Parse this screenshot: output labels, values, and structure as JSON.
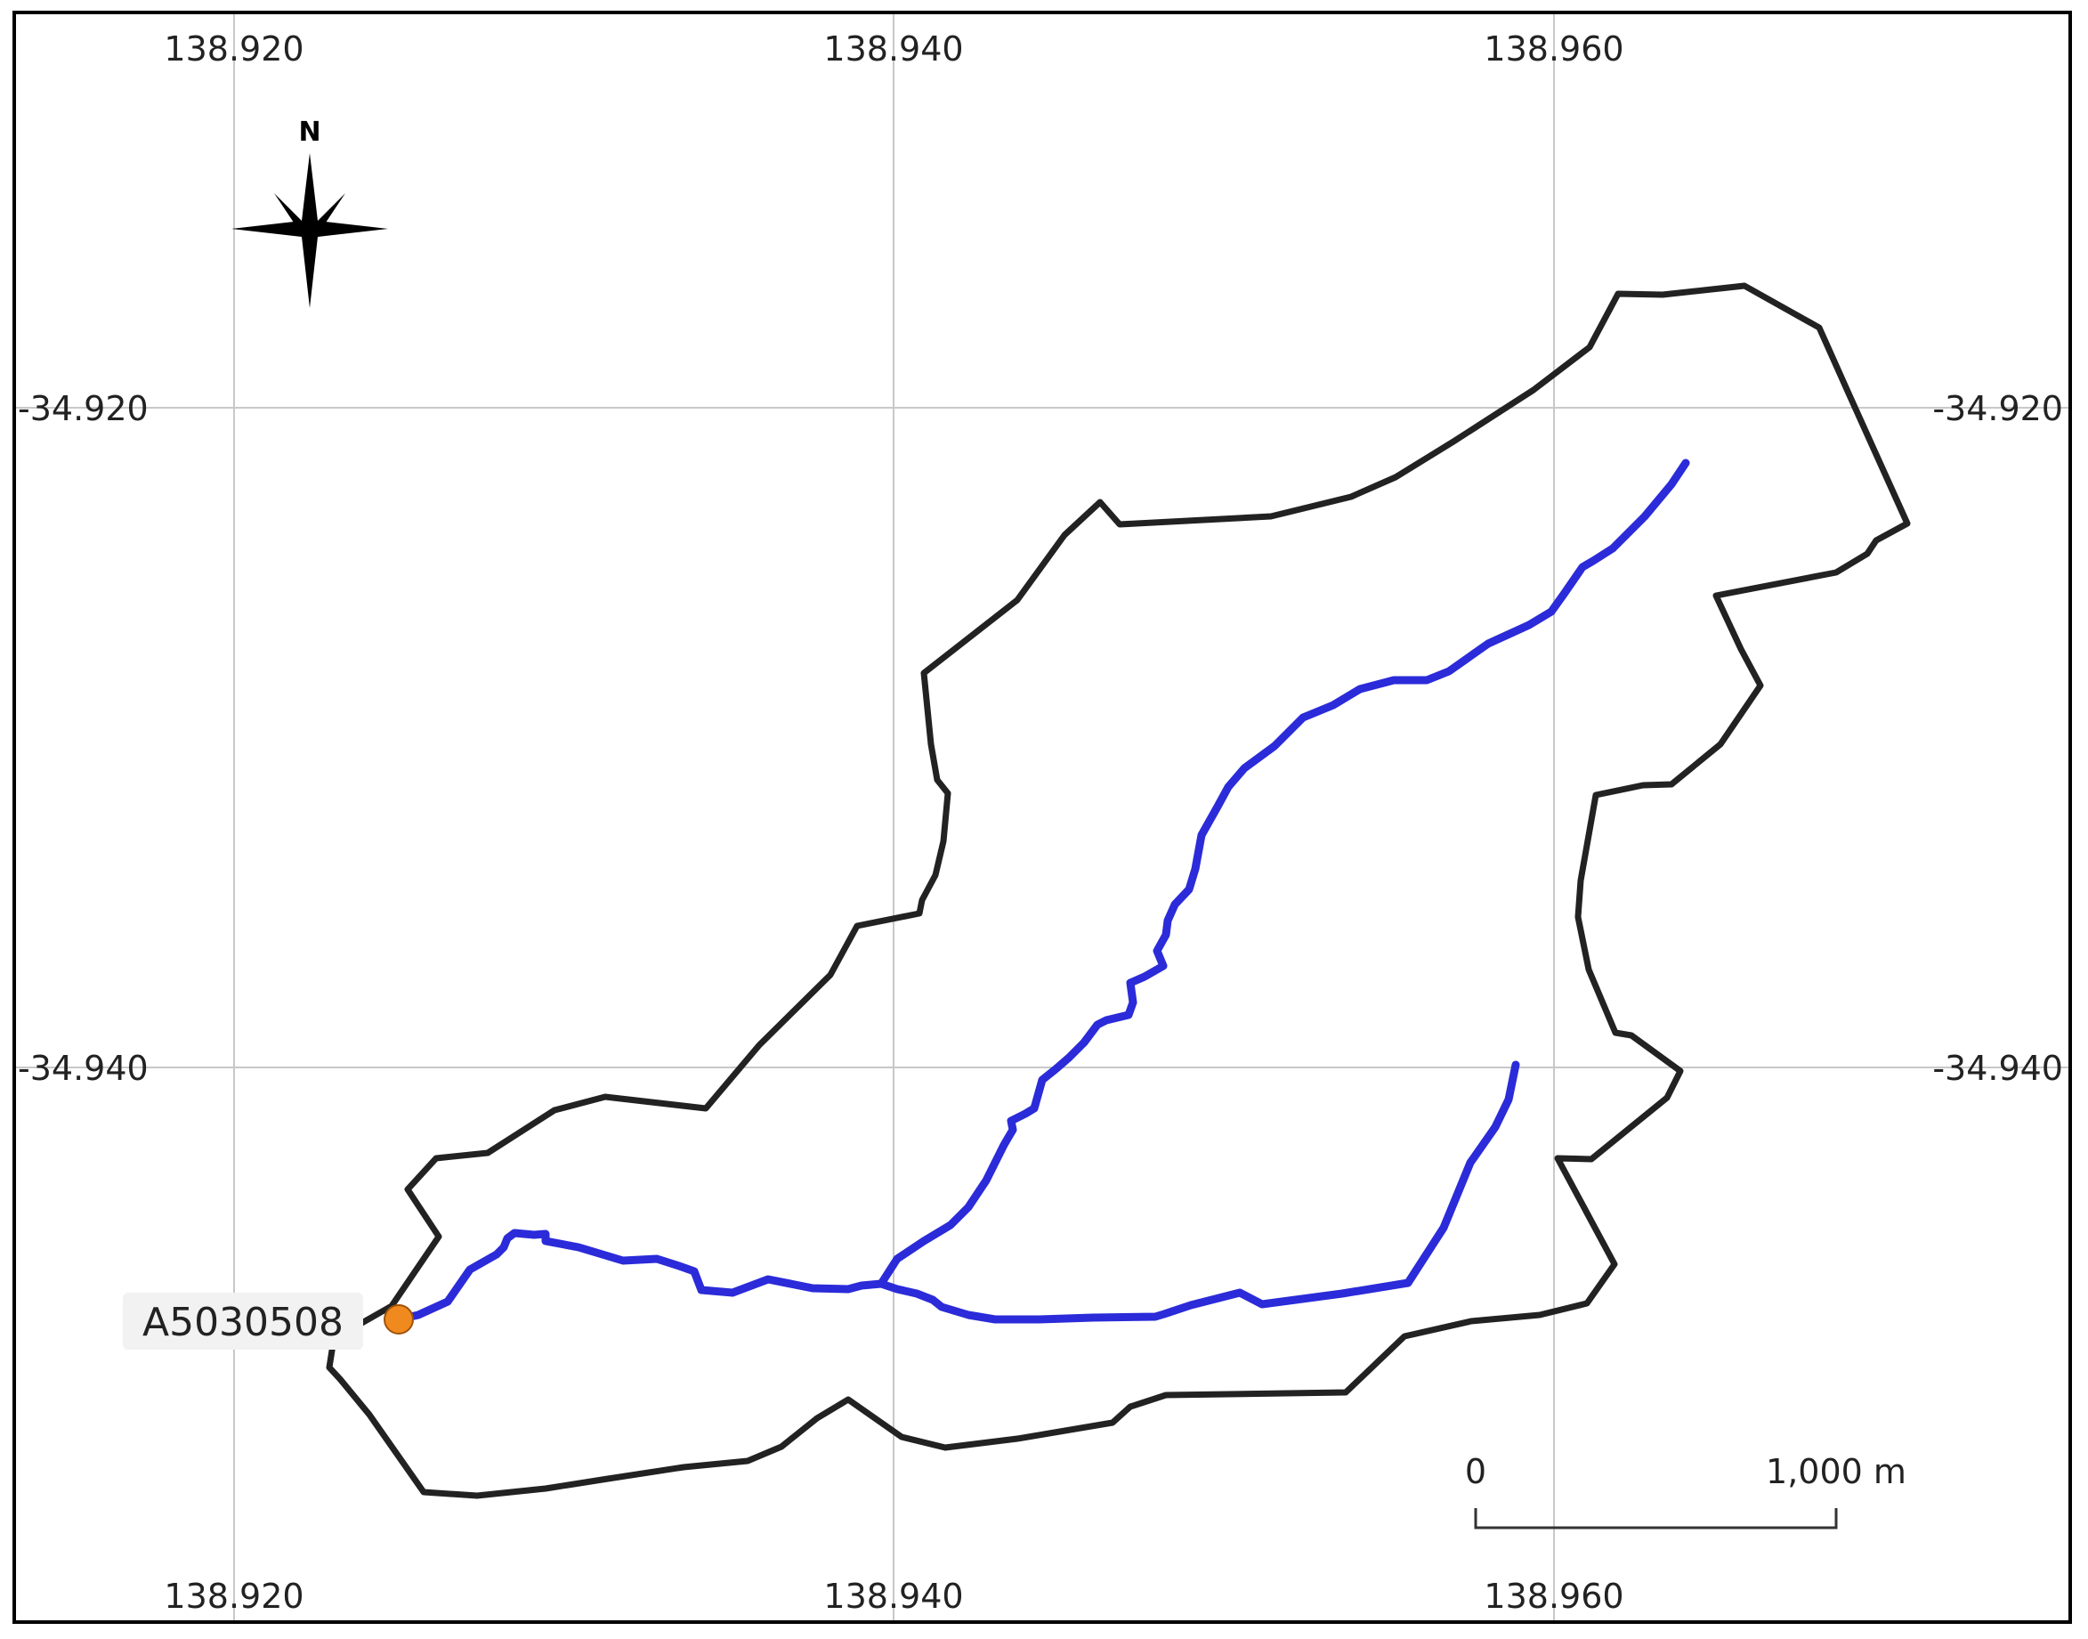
{
  "map": {
    "longitude_labels_top": [
      "138.920",
      "138.940",
      "138.960"
    ],
    "longitude_labels_bottom": [
      "138.920",
      "138.940",
      "138.960"
    ],
    "latitude_labels_left": [
      "-34.920",
      "-34.940"
    ],
    "latitude_labels_right": [
      "-34.920",
      "-34.940"
    ],
    "north_label": "N",
    "station": {
      "label": "A5030508",
      "color": "#f08a1e"
    },
    "scale_bar": {
      "start_label": "0",
      "end_label": "1,000 m"
    },
    "colors": {
      "catchment_boundary": "#222222",
      "stream": "#2b2bd9",
      "grid": "#c8c8c8"
    }
  }
}
